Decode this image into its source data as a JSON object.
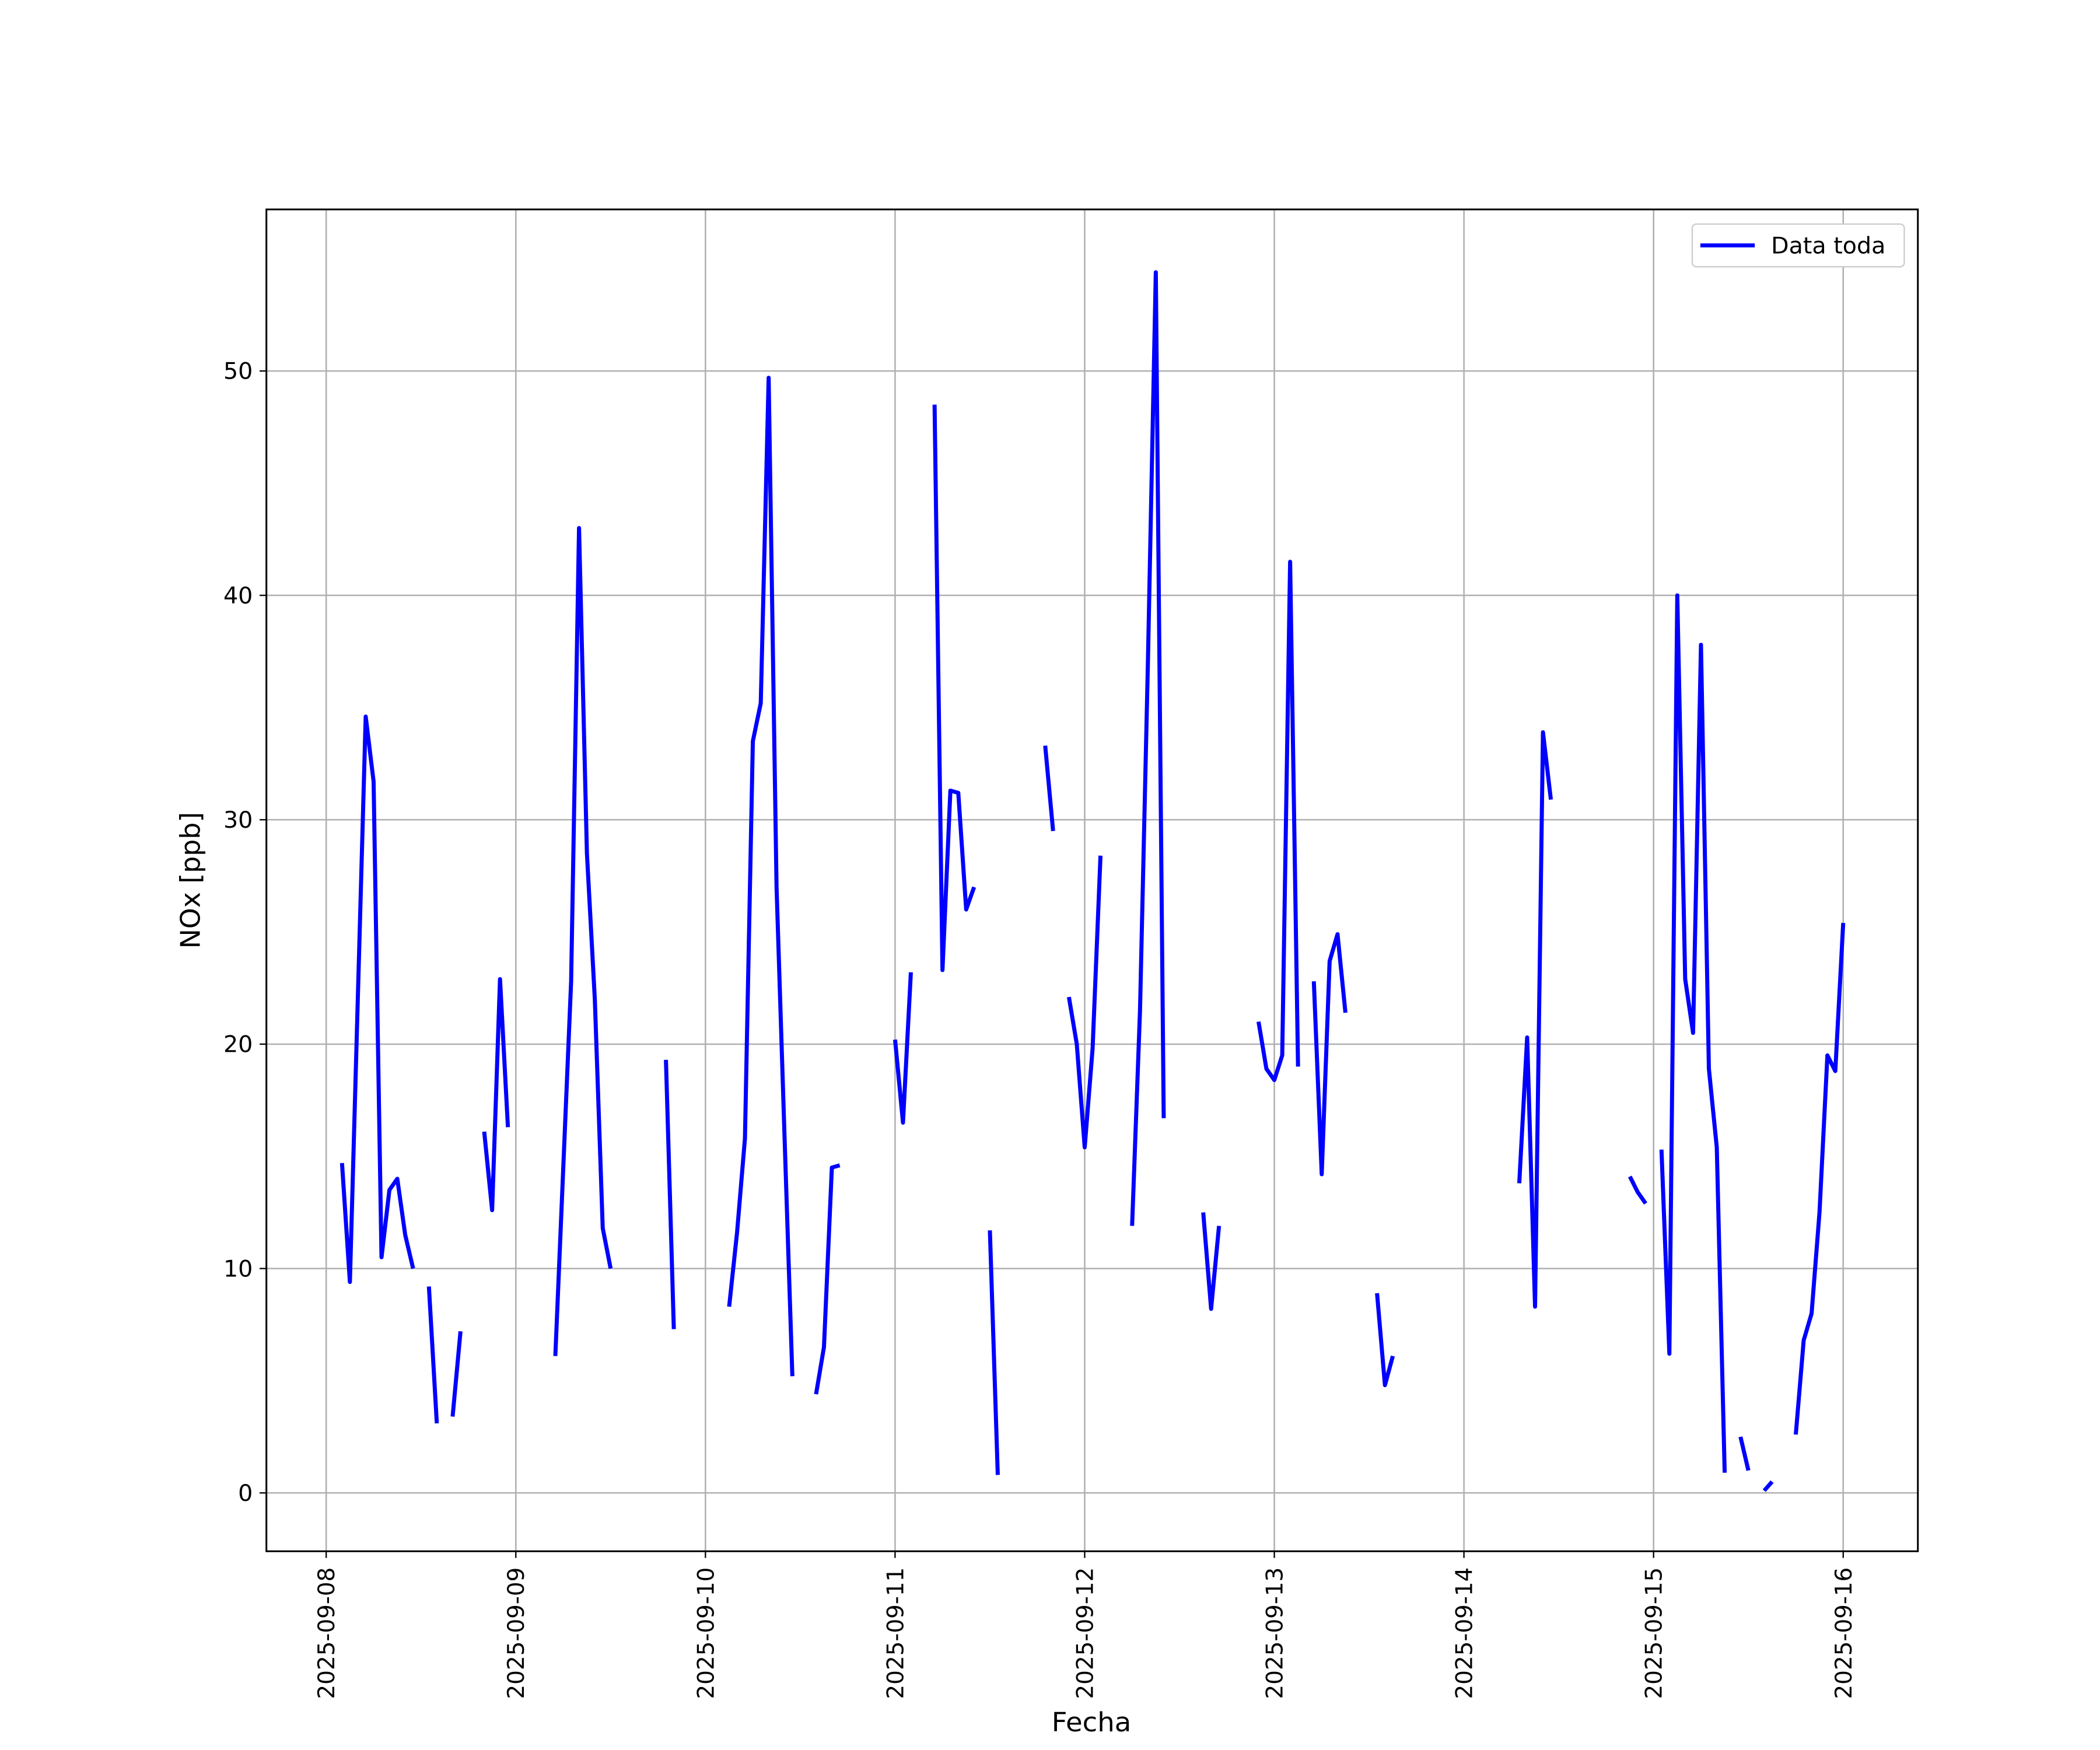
{
  "chart_data": {
    "type": "line",
    "xlabel": "Fecha",
    "ylabel": "NOx [ppb]",
    "grid": true,
    "legend": "upper right",
    "xlim": [
      "2025-09-07 16:26",
      "2025-09-16 09:27"
    ],
    "xticks": [
      "2025-09-08",
      "2025-09-09",
      "2025-09-10",
      "2025-09-11",
      "2025-09-12",
      "2025-09-13",
      "2025-09-14",
      "2025-09-15",
      "2025-09-16"
    ],
    "ylim": [
      -2.6,
      57.2
    ],
    "yticks": [
      0,
      10,
      20,
      30,
      40,
      50
    ],
    "x": [
      "2025-09-08 02:00",
      "2025-09-08 03:00",
      "2025-09-08 05:00",
      "2025-09-08 06:00",
      "2025-09-08 07:00",
      "2025-09-08 08:00",
      "2025-09-08 09:00",
      "2025-09-08 10:00",
      "2025-09-08 11:00",
      "2025-09-08 12:00",
      "2025-09-08 13:00",
      "2025-09-08 14:00",
      "2025-09-08 15:00",
      "2025-09-08 16:00",
      "2025-09-08 17:00",
      "2025-09-08 18:00",
      "2025-09-08 20:00",
      "2025-09-08 21:00",
      "2025-09-08 22:00",
      "2025-09-08 23:00",
      "2025-09-09 00:00",
      "2025-09-09 05:00",
      "2025-09-09 07:00",
      "2025-09-09 08:00",
      "2025-09-09 09:00",
      "2025-09-09 10:00",
      "2025-09-09 11:00",
      "2025-09-09 12:00",
      "2025-09-09 13:00",
      "2025-09-09 19:00",
      "2025-09-09 20:00",
      "2025-09-09 21:00",
      "2025-09-10 03:00",
      "2025-09-10 04:00",
      "2025-09-10 05:00",
      "2025-09-10 06:00",
      "2025-09-10 07:00",
      "2025-09-10 08:00",
      "2025-09-10 09:00",
      "2025-09-10 10:00",
      "2025-09-10 11:00",
      "2025-09-10 12:00",
      "2025-09-10 14:00",
      "2025-09-10 15:00",
      "2025-09-10 16:00",
      "2025-09-10 17:00",
      "2025-09-10 18:00",
      "2025-09-11 00:00",
      "2025-09-11 01:00",
      "2025-09-11 02:00",
      "2025-09-11 03:00",
      "2025-09-11 05:00",
      "2025-09-11 06:00",
      "2025-09-11 07:00",
      "2025-09-11 08:00",
      "2025-09-11 09:00",
      "2025-09-11 10:00",
      "2025-09-11 11:00",
      "2025-09-11 12:00",
      "2025-09-11 13:00",
      "2025-09-11 14:00",
      "2025-09-11 19:00",
      "2025-09-11 20:00",
      "2025-09-11 21:00",
      "2025-09-11 22:00",
      "2025-09-11 23:00",
      "2025-09-12 00:00",
      "2025-09-12 01:00",
      "2025-09-12 02:00",
      "2025-09-12 03:00",
      "2025-09-12 06:00",
      "2025-09-12 07:00",
      "2025-09-12 08:00",
      "2025-09-12 09:00",
      "2025-09-12 10:00",
      "2025-09-12 11:00",
      "2025-09-12 15:00",
      "2025-09-12 16:00",
      "2025-09-12 17:00",
      "2025-09-12 18:00",
      "2025-09-12 22:00",
      "2025-09-12 23:00",
      "2025-09-13 00:00",
      "2025-09-13 01:00",
      "2025-09-13 02:00",
      "2025-09-13 03:00",
      "2025-09-13 04:00",
      "2025-09-13 05:00",
      "2025-09-13 06:00",
      "2025-09-13 07:00",
      "2025-09-13 08:00",
      "2025-09-13 09:00",
      "2025-09-13 10:00",
      "2025-09-13 13:00",
      "2025-09-13 14:00",
      "2025-09-13 15:00",
      "2025-09-13 16:00",
      "2025-09-14 07:00",
      "2025-09-14 08:00",
      "2025-09-14 09:00",
      "2025-09-14 10:00",
      "2025-09-14 11:00",
      "2025-09-14 12:00",
      "2025-09-14 21:00",
      "2025-09-14 22:00",
      "2025-09-14 23:00",
      "2025-09-15 00:00",
      "2025-09-15 01:00",
      "2025-09-15 02:00",
      "2025-09-15 03:00",
      "2025-09-15 04:00",
      "2025-09-15 05:00",
      "2025-09-15 06:00",
      "2025-09-15 07:00",
      "2025-09-15 08:00",
      "2025-09-15 09:00",
      "2025-09-15 10:00",
      "2025-09-15 11:00",
      "2025-09-15 12:00",
      "2025-09-15 13:00",
      "2025-09-15 14:00",
      "2025-09-15 15:00",
      "2025-09-15 16:00",
      "2025-09-15 18:00",
      "2025-09-15 19:00",
      "2025-09-15 20:00",
      "2025-09-15 21:00",
      "2025-09-15 22:00",
      "2025-09-15 23:00",
      "2025-09-16 00:00"
    ],
    "series": [
      {
        "name": "Data toda",
        "color": "#0000ff",
        "values": [
          14.7,
          9.4,
          34.6,
          31.7,
          10.5,
          13.5,
          14.0,
          11.5,
          10.0,
          null,
          9.2,
          3.1,
          null,
          3.4,
          7.2,
          null,
          16.1,
          12.6,
          22.9,
          16.3,
          null,
          6.1,
          22.8,
          43.0,
          28.5,
          22.0,
          11.8,
          10.0,
          null,
          19.3,
          7.3,
          null,
          8.3,
          11.6,
          15.8,
          33.5,
          35.2,
          49.7,
          27.0,
          16.0,
          5.2,
          null,
          4.4,
          6.5,
          14.5,
          14.6,
          null,
          20.2,
          16.5,
          23.2,
          null,
          48.5,
          23.3,
          31.3,
          31.2,
          26.0,
          27.0,
          null,
          11.7,
          0.8,
          null,
          33.3,
          29.5,
          null,
          22.1,
          20.0,
          15.4,
          19.8,
          28.4,
          null,
          11.9,
          21.5,
          37.0,
          54.4,
          16.7,
          null,
          12.5,
          8.2,
          11.9,
          null,
          21.0,
          18.9,
          18.4,
          19.5,
          41.5,
          19.0,
          null,
          22.8,
          14.2,
          23.7,
          24.9,
          21.4,
          null,
          8.9,
          4.8,
          6.1,
          null,
          13.8,
          20.3,
          8.3,
          33.9,
          30.9,
          null,
          14.1,
          13.4,
          12.9,
          null,
          15.3,
          6.2,
          40.0,
          22.9,
          20.5,
          37.8,
          18.9,
          15.4,
          0.9,
          null,
          2.5,
          1.0,
          null,
          0.1,
          0.5,
          null,
          2.6,
          6.8,
          8.0,
          12.5,
          19.5,
          18.8,
          25.4
        ]
      }
    ]
  }
}
